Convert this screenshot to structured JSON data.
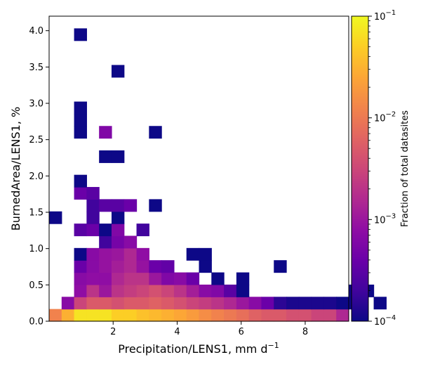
{
  "chart_data": {
    "type": "heatmap",
    "title": "",
    "xlabel": "Precipitation/LENS1,  mm d",
    "xlabel_sup": "−1",
    "ylabel": "BurnedArea/LENS1,  %",
    "xlim": [
      0,
      9.36
    ],
    "ylim": [
      0,
      4.2
    ],
    "x_bin_width": 0.39,
    "y_bin_width": 0.168,
    "x_ticks": [
      2,
      4,
      6,
      8
    ],
    "x_tick_labels": [
      "2",
      "4",
      "6",
      "8"
    ],
    "y_ticks": [
      0.0,
      0.5,
      1.0,
      1.5,
      2.0,
      2.5,
      3.0,
      3.5,
      4.0
    ],
    "y_tick_labels": [
      "0.0",
      "0.5",
      "1.0",
      "1.5",
      "2.0",
      "2.5",
      "3.0",
      "3.5",
      "4.0"
    ],
    "colorbar": {
      "label": "Fraction of total datasites",
      "scale": "log",
      "colormap": "plasma",
      "range": [
        0.0001,
        0.1
      ],
      "ticks": [
        0.0001,
        0.001,
        0.01,
        0.1
      ],
      "tick_base": [
        "10",
        "10",
        "10",
        "10"
      ],
      "tick_exp": [
        "−4",
        "−3",
        "−2",
        "−1"
      ]
    },
    "cells": [
      [
        0,
        0,
        0.012
      ],
      [
        1,
        0,
        0.03
      ],
      [
        2,
        0,
        0.07
      ],
      [
        3,
        0,
        0.07
      ],
      [
        4,
        0,
        0.07
      ],
      [
        5,
        0,
        0.05
      ],
      [
        6,
        0,
        0.05
      ],
      [
        7,
        0,
        0.04
      ],
      [
        8,
        0,
        0.035
      ],
      [
        9,
        0,
        0.03
      ],
      [
        10,
        0,
        0.025
      ],
      [
        11,
        0,
        0.02
      ],
      [
        12,
        0,
        0.015
      ],
      [
        13,
        0,
        0.012
      ],
      [
        14,
        0,
        0.01
      ],
      [
        15,
        0,
        0.008
      ],
      [
        16,
        0,
        0.006
      ],
      [
        17,
        0,
        0.005
      ],
      [
        18,
        0,
        0.005
      ],
      [
        19,
        0,
        0.004
      ],
      [
        20,
        0,
        0.004
      ],
      [
        21,
        0,
        0.003
      ],
      [
        22,
        0,
        0.003
      ],
      [
        23,
        0,
        0.0015
      ],
      [
        1,
        1,
        0.0007
      ],
      [
        2,
        1,
        0.003
      ],
      [
        3,
        1,
        0.005
      ],
      [
        4,
        1,
        0.005
      ],
      [
        5,
        1,
        0.004
      ],
      [
        6,
        1,
        0.005
      ],
      [
        7,
        1,
        0.005
      ],
      [
        8,
        1,
        0.006
      ],
      [
        9,
        1,
        0.005
      ],
      [
        10,
        1,
        0.004
      ],
      [
        11,
        1,
        0.003
      ],
      [
        12,
        1,
        0.0025
      ],
      [
        13,
        1,
        0.002
      ],
      [
        14,
        1,
        0.0015
      ],
      [
        15,
        1,
        0.001
      ],
      [
        16,
        1,
        0.0007
      ],
      [
        17,
        1,
        0.0004
      ],
      [
        18,
        1,
        0.00015
      ],
      [
        19,
        1,
        0.00012
      ],
      [
        20,
        1,
        0.00012
      ],
      [
        21,
        1,
        0.00012
      ],
      [
        22,
        1,
        0.00012
      ],
      [
        23,
        1,
        0.0001
      ],
      [
        24,
        1,
        0.0001
      ],
      [
        26,
        1,
        0.0001
      ],
      [
        2,
        2,
        0.0008
      ],
      [
        3,
        2,
        0.002
      ],
      [
        4,
        2,
        0.001
      ],
      [
        5,
        2,
        0.002
      ],
      [
        6,
        2,
        0.0025
      ],
      [
        7,
        2,
        0.003
      ],
      [
        8,
        2,
        0.004
      ],
      [
        9,
        2,
        0.003
      ],
      [
        10,
        2,
        0.002
      ],
      [
        11,
        2,
        0.0012
      ],
      [
        12,
        2,
        0.0007
      ],
      [
        13,
        2,
        0.0006
      ],
      [
        14,
        2,
        0.0003
      ],
      [
        15,
        2,
        0.0001
      ],
      [
        24,
        2,
        0.0001
      ],
      [
        25,
        2,
        0.0001
      ],
      [
        2,
        3,
        0.0007
      ],
      [
        3,
        3,
        0.0008
      ],
      [
        4,
        3,
        0.0008
      ],
      [
        5,
        3,
        0.0015
      ],
      [
        6,
        3,
        0.002
      ],
      [
        7,
        3,
        0.002
      ],
      [
        8,
        3,
        0.001
      ],
      [
        9,
        3,
        0.0006
      ],
      [
        10,
        3,
        0.0007
      ],
      [
        11,
        3,
        0.0004
      ],
      [
        13,
        3,
        0.0001
      ],
      [
        15,
        3,
        0.0001
      ],
      [
        2,
        4,
        0.0004
      ],
      [
        3,
        4,
        0.0007
      ],
      [
        4,
        4,
        0.0009
      ],
      [
        5,
        4,
        0.0012
      ],
      [
        6,
        4,
        0.0015
      ],
      [
        7,
        4,
        0.0009
      ],
      [
        8,
        4,
        0.0004
      ],
      [
        9,
        4,
        0.00035
      ],
      [
        12,
        4,
        0.0001
      ],
      [
        18,
        4,
        0.0001
      ],
      [
        2,
        5,
        0.0001
      ],
      [
        3,
        5,
        0.0007
      ],
      [
        4,
        5,
        0.0009
      ],
      [
        5,
        5,
        0.001
      ],
      [
        6,
        5,
        0.0015
      ],
      [
        7,
        5,
        0.0008
      ],
      [
        11,
        5,
        0.0001
      ],
      [
        12,
        5,
        0.0001
      ],
      [
        4,
        6,
        0.0002
      ],
      [
        5,
        6,
        0.0005
      ],
      [
        6,
        6,
        0.0007
      ],
      [
        2,
        7,
        0.0003
      ],
      [
        3,
        7,
        0.0004
      ],
      [
        4,
        7,
        0.0001
      ],
      [
        5,
        7,
        0.0006
      ],
      [
        7,
        7,
        0.0002
      ],
      [
        0,
        8,
        0.0001
      ],
      [
        3,
        8,
        0.0002
      ],
      [
        5,
        8,
        0.0001
      ],
      [
        3,
        9,
        0.0002
      ],
      [
        4,
        9,
        0.0003
      ],
      [
        5,
        9,
        0.0003
      ],
      [
        6,
        9,
        0.0004
      ],
      [
        8,
        9,
        0.0001
      ],
      [
        2,
        10,
        0.0004
      ],
      [
        3,
        10,
        0.0003
      ],
      [
        2,
        11,
        0.0001
      ],
      [
        4,
        13,
        0.0001
      ],
      [
        5,
        13,
        0.0001
      ],
      [
        2,
        15,
        0.0001
      ],
      [
        4,
        15,
        0.0006
      ],
      [
        8,
        15,
        0.0001
      ],
      [
        2,
        16,
        0.0001
      ],
      [
        2,
        17,
        0.0001
      ],
      [
        5,
        20,
        0.0001
      ],
      [
        2,
        23,
        0.0001
      ]
    ]
  }
}
